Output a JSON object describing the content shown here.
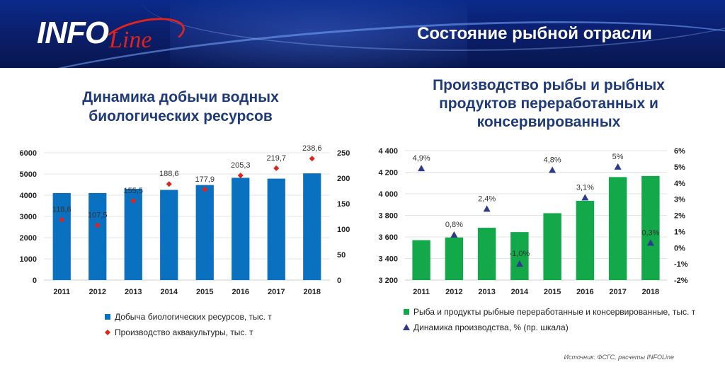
{
  "header": {
    "logo_text": "INFOLine",
    "title": "Состояние рыбной отрасли"
  },
  "chart_data": [
    {
      "type": "bar",
      "title": "Динамика добычи водных биологических ресурсов",
      "categories": [
        "2011",
        "2012",
        "2013",
        "2014",
        "2015",
        "2016",
        "2017",
        "2018"
      ],
      "series": [
        {
          "name": "Добыча биологических ресурсов, тыс. т",
          "type": "bar",
          "axis": "left",
          "values": [
            4100,
            4100,
            4300,
            4250,
            4480,
            4820,
            4780,
            5030
          ],
          "color": "#0a70c0"
        },
        {
          "name": "Производство аквакультуры, тыс. т",
          "type": "scatter",
          "axis": "right",
          "values": [
            118.6,
            107.5,
            155.5,
            188.6,
            177.9,
            205.3,
            219.7,
            238.6
          ],
          "labels": [
            "118,6",
            "107,5",
            "155,5",
            "188,6",
            "177,9",
            "205,3",
            "219,7",
            "238,6"
          ],
          "color": "#e0231c"
        }
      ],
      "left_axis": {
        "ylim": [
          0,
          6000
        ],
        "ticks": [
          "0",
          "1000",
          "2000",
          "3000",
          "4000",
          "5000",
          "6000"
        ]
      },
      "right_axis": {
        "ylim": [
          0,
          250
        ],
        "ticks": [
          "0",
          "50",
          "100",
          "150",
          "200",
          "250"
        ]
      },
      "legend_position": "bottom"
    },
    {
      "type": "bar",
      "title": "Производство рыбы и рыбных продуктов переработанных и консервированных",
      "categories": [
        "2011",
        "2012",
        "2013",
        "2014",
        "2015",
        "2016",
        "2017",
        "2018"
      ],
      "series": [
        {
          "name": "Рыба и продукты рыбные переработанные и консервированные, тыс. т",
          "type": "bar",
          "axis": "left",
          "values": [
            3570,
            3595,
            3685,
            3645,
            3820,
            3935,
            4155,
            4165
          ],
          "color": "#13a84a"
        },
        {
          "name": "Динамика производства, % (пр. шкала)",
          "type": "scatter",
          "axis": "right",
          "values": [
            4.9,
            0.8,
            2.4,
            -1.0,
            4.8,
            3.1,
            5.0,
            0.3
          ],
          "labels": [
            "4,9%",
            "0,8%",
            "2,4%",
            "-1,0%",
            "4,8%",
            "3,1%",
            "5%",
            "0,3%"
          ],
          "color": "#2e3a8c"
        }
      ],
      "left_axis": {
        "ylim": [
          3200,
          4400
        ],
        "ticks": [
          "3 200",
          "3 400",
          "3 600",
          "3 800",
          "4 000",
          "4 200",
          "4 400"
        ]
      },
      "right_axis": {
        "ylim": [
          -2,
          6
        ],
        "ticks": [
          "-2%",
          "-1%",
          "0%",
          "1%",
          "2%",
          "3%",
          "4%",
          "5%",
          "6%"
        ]
      },
      "legend_position": "bottom"
    }
  ],
  "source": "Источник: ФСГС, расчеты INFOLine"
}
